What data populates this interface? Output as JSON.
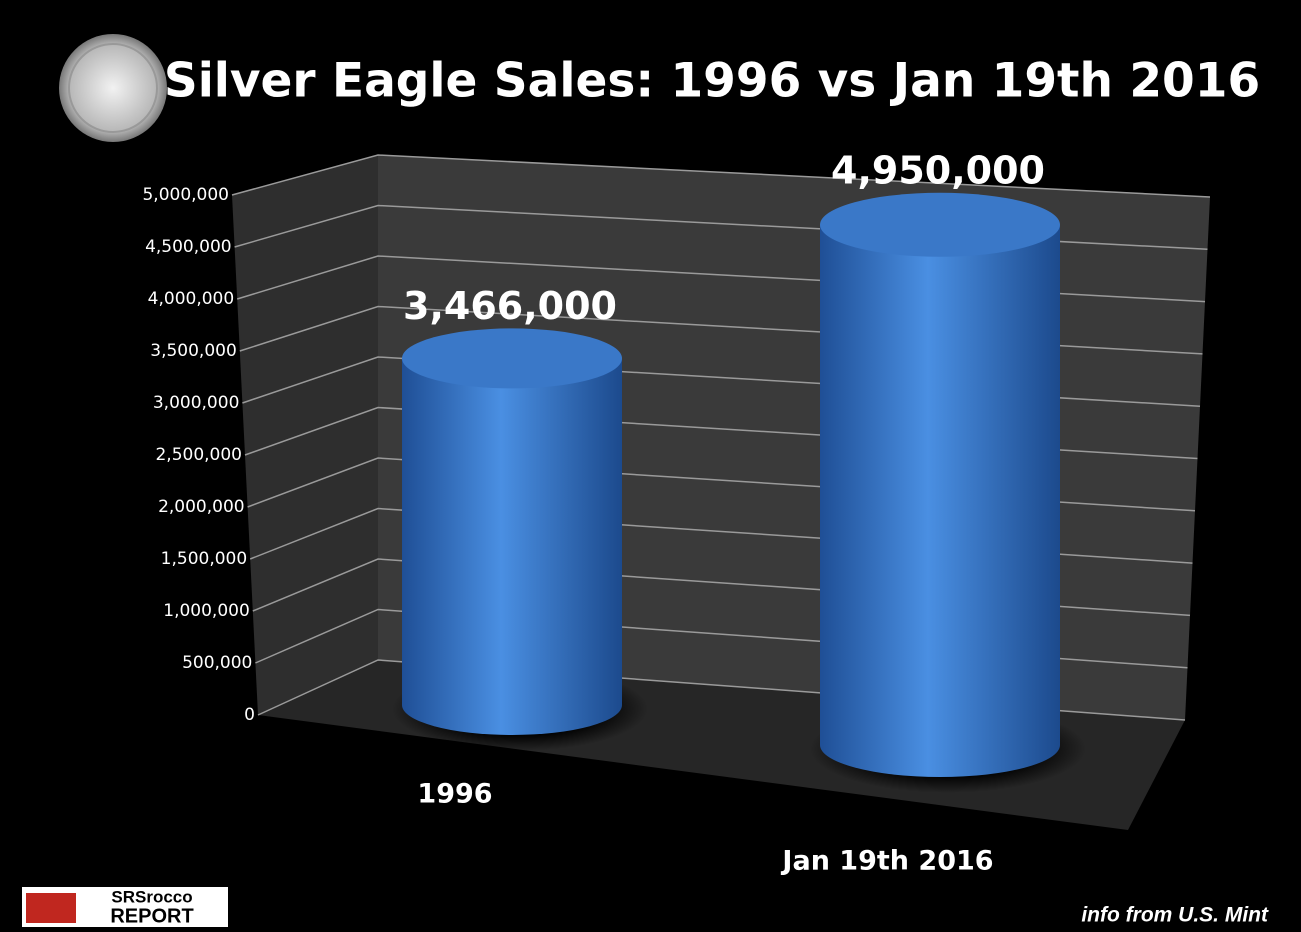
{
  "chart_data": {
    "type": "bar",
    "title": "Silver Eagle Sales: 1996 vs Jan 19th 2016",
    "categories": [
      "1996",
      "Jan 19th 2016"
    ],
    "values": [
      3466000,
      4950000
    ],
    "value_labels": [
      "3,466,000",
      "4,950,000"
    ],
    "color": "#3a78c8",
    "ylim": [
      0,
      5000000
    ],
    "yticks": [
      0,
      {
        "value": 500000,
        "label": "500,000"
      },
      {
        "value": 1000000,
        "label": "1,000,000"
      },
      {
        "value": 1500000,
        "label": "1,500,000"
      },
      {
        "value": 2000000,
        "label": "2,000,000"
      },
      {
        "value": 2500000,
        "label": "2,500,000"
      },
      {
        "value": 3000000,
        "label": "3,000,000"
      },
      {
        "value": 3500000,
        "label": "3,500,000"
      },
      {
        "value": 4000000,
        "label": "4,000,000"
      },
      {
        "value": 4500000,
        "label": "4,500,000"
      },
      {
        "value": 5000000,
        "label": "5,000,000"
      }
    ],
    "grid": true,
    "source": "info from U.S. Mint"
  },
  "logo": {
    "line1": "SRSrocco",
    "line2": "REPORT"
  }
}
